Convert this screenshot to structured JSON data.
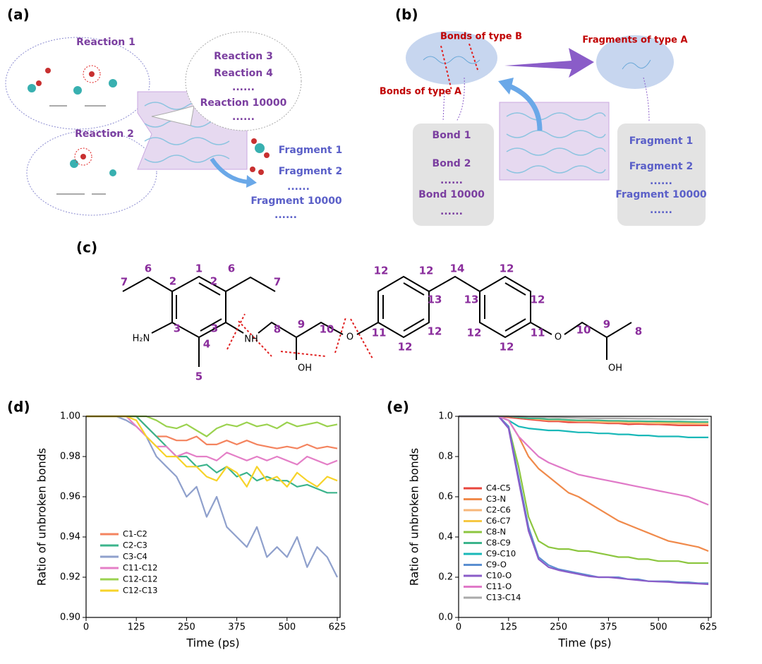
{
  "panel_a": {
    "label": "(a)",
    "reactions": [
      "Reaction 1",
      "Reaction 2"
    ],
    "reaction_list": [
      "Reaction 3",
      "Reaction 4",
      "......",
      "Reaction 10000",
      "......"
    ],
    "fragment_list": [
      "Fragment 1",
      "Fragment 2",
      "......",
      "Fragment 10000",
      "......"
    ]
  },
  "panel_b": {
    "label": "(b)",
    "bonds_b": "Bonds of type B",
    "bonds_a": "Bonds of type A",
    "fragments_a": "Fragments of type A",
    "bond_list": [
      "Bond 1",
      "Bond 2",
      "......",
      "Bond 10000",
      "......"
    ],
    "fragment_list": [
      "Fragment 1",
      "Fragment 2",
      "......",
      "Fragment 10000",
      "......"
    ]
  },
  "panel_c": {
    "label": "(c)",
    "numbers": [
      "7",
      "6",
      "2",
      "1",
      "2",
      "6",
      "7",
      "3",
      "3",
      "4",
      "5",
      "8",
      "9",
      "10",
      "11",
      "12",
      "12",
      "13",
      "12",
      "12",
      "14",
      "13",
      "12",
      "12",
      "12",
      "12",
      "11",
      "10",
      "9",
      "8"
    ],
    "groups": [
      "H₂N",
      "NH",
      "OH",
      "O",
      "O",
      "OH"
    ]
  },
  "chart_data": [
    {
      "type": "line",
      "panel_label": "(d)",
      "xlabel": "Time (ps)",
      "ylabel": "Ratio of unbroken bonds",
      "xlim": [
        0,
        632
      ],
      "xticks": [
        0,
        125,
        250,
        375,
        500,
        625
      ],
      "ylim": [
        0.9,
        1.0
      ],
      "yticks": [
        {
          "value": 0.9,
          "label": "0.90"
        },
        0.92,
        0.94,
        0.96,
        0.98,
        {
          "value": 1.0,
          "label": "1.00"
        }
      ],
      "legend": "lower left",
      "x": [
        0,
        25,
        50,
        75,
        100,
        125,
        150,
        175,
        200,
        225,
        250,
        275,
        300,
        325,
        350,
        375,
        400,
        425,
        450,
        475,
        500,
        525,
        550,
        575,
        600,
        625
      ],
      "series": [
        {
          "name": "C1-C2",
          "color": "#f4845f",
          "values": [
            1,
            1,
            1,
            1,
            1,
            1,
            0.995,
            0.99,
            0.99,
            0.988,
            0.988,
            0.99,
            0.986,
            0.986,
            0.988,
            0.986,
            0.988,
            0.986,
            0.985,
            0.984,
            0.985,
            0.984,
            0.986,
            0.984,
            0.985,
            0.984
          ]
        },
        {
          "name": "C2-C3",
          "color": "#3cb48c",
          "values": [
            1,
            1,
            1,
            1,
            1,
            1,
            0.995,
            0.99,
            0.985,
            0.98,
            0.98,
            0.975,
            0.976,
            0.972,
            0.975,
            0.97,
            0.972,
            0.968,
            0.97,
            0.968,
            0.968,
            0.965,
            0.966,
            0.964,
            0.962,
            0.962
          ]
        },
        {
          "name": "C3-C4",
          "color": "#8fa0cc",
          "values": [
            1,
            1,
            1,
            1,
            0.998,
            0.995,
            0.99,
            0.98,
            0.975,
            0.97,
            0.96,
            0.965,
            0.95,
            0.96,
            0.945,
            0.94,
            0.935,
            0.945,
            0.93,
            0.935,
            0.93,
            0.94,
            0.925,
            0.935,
            0.93,
            0.92
          ]
        },
        {
          "name": "C11-C12",
          "color": "#e47fc7",
          "values": [
            1,
            1,
            1,
            1,
            1,
            0.995,
            0.99,
            0.985,
            0.985,
            0.98,
            0.982,
            0.98,
            0.98,
            0.978,
            0.982,
            0.98,
            0.978,
            0.98,
            0.978,
            0.98,
            0.978,
            0.976,
            0.98,
            0.978,
            0.976,
            0.978
          ]
        },
        {
          "name": "C12-C12",
          "color": "#9bd24f",
          "values": [
            1,
            1,
            1,
            1,
            1,
            1,
            1,
            0.998,
            0.995,
            0.994,
            0.996,
            0.993,
            0.99,
            0.994,
            0.996,
            0.995,
            0.997,
            0.995,
            0.996,
            0.994,
            0.997,
            0.995,
            0.996,
            0.997,
            0.995,
            0.996
          ]
        },
        {
          "name": "C12-C13",
          "color": "#f7d32a",
          "values": [
            1,
            1,
            1,
            1,
            1,
            0.998,
            0.99,
            0.985,
            0.98,
            0.98,
            0.975,
            0.975,
            0.97,
            0.968,
            0.975,
            0.972,
            0.965,
            0.975,
            0.968,
            0.97,
            0.965,
            0.972,
            0.968,
            0.965,
            0.97,
            0.968
          ]
        }
      ]
    },
    {
      "type": "line",
      "panel_label": "(e)",
      "xlabel": "Time (ps)",
      "ylabel": "Ratio of unbroken bonds",
      "xlim": [
        0,
        632
      ],
      "xticks": [
        0,
        125,
        250,
        375,
        500,
        625
      ],
      "ylim": [
        0.0,
        1.0
      ],
      "yticks": [
        {
          "value": 0.0,
          "label": "0.0"
        },
        0.2,
        0.4,
        0.6,
        0.8,
        {
          "value": 1.0,
          "label": "1.0"
        }
      ],
      "legend": "left",
      "x": [
        0,
        25,
        50,
        75,
        100,
        125,
        150,
        175,
        200,
        225,
        250,
        275,
        300,
        325,
        350,
        375,
        400,
        425,
        450,
        475,
        500,
        525,
        550,
        575,
        600,
        625
      ],
      "series": [
        {
          "name": "C4-C5",
          "color": "#e8453c",
          "values": [
            1,
            1,
            1,
            1,
            1,
            0.995,
            0.99,
            0.985,
            0.98,
            0.975,
            0.975,
            0.97,
            0.97,
            0.97,
            0.968,
            0.965,
            0.965,
            0.96,
            0.962,
            0.96,
            0.96,
            0.958,
            0.955,
            0.955,
            0.955,
            0.955
          ]
        },
        {
          "name": "C3-N",
          "color": "#f08a4b",
          "values": [
            1,
            1,
            1,
            1,
            1,
            0.98,
            0.9,
            0.8,
            0.74,
            0.7,
            0.66,
            0.62,
            0.6,
            0.57,
            0.54,
            0.51,
            0.48,
            0.46,
            0.44,
            0.42,
            0.4,
            0.38,
            0.37,
            0.36,
            0.35,
            0.33
          ]
        },
        {
          "name": "C2-C6",
          "color": "#f7b77a",
          "values": [
            1,
            1,
            1,
            1,
            1,
            1,
            0.995,
            0.99,
            0.985,
            0.98,
            0.98,
            0.978,
            0.975,
            0.975,
            0.972,
            0.97,
            0.97,
            0.968,
            0.968,
            0.966,
            0.965,
            0.965,
            0.964,
            0.963,
            0.962,
            0.962
          ]
        },
        {
          "name": "C6-C7",
          "color": "#f6c843",
          "values": [
            1,
            1,
            1,
            1,
            1,
            1,
            0.995,
            0.99,
            0.988,
            0.985,
            0.985,
            0.982,
            0.98,
            0.98,
            0.978,
            0.978,
            0.976,
            0.975,
            0.975,
            0.974,
            0.972,
            0.972,
            0.971,
            0.97,
            0.97,
            0.97
          ]
        },
        {
          "name": "C8-N",
          "color": "#8cc63f",
          "values": [
            1,
            1,
            1,
            1,
            1,
            0.95,
            0.75,
            0.5,
            0.38,
            0.35,
            0.34,
            0.34,
            0.33,
            0.33,
            0.32,
            0.31,
            0.3,
            0.3,
            0.29,
            0.29,
            0.28,
            0.28,
            0.28,
            0.27,
            0.27,
            0.27
          ]
        },
        {
          "name": "C8-C9",
          "color": "#3cb48c",
          "values": [
            1,
            1,
            1,
            1,
            1,
            1,
            0.995,
            0.99,
            0.99,
            0.985,
            0.985,
            0.982,
            0.98,
            0.98,
            0.98,
            0.978,
            0.978,
            0.976,
            0.976,
            0.975,
            0.975,
            0.974,
            0.974,
            0.973,
            0.972,
            0.972
          ]
        },
        {
          "name": "C9-C10",
          "color": "#19b8b8",
          "values": [
            1,
            1,
            1,
            1,
            1,
            0.98,
            0.95,
            0.94,
            0.935,
            0.93,
            0.93,
            0.925,
            0.92,
            0.92,
            0.915,
            0.915,
            0.91,
            0.91,
            0.905,
            0.905,
            0.9,
            0.9,
            0.9,
            0.895,
            0.895,
            0.895
          ]
        },
        {
          "name": "C9-O",
          "color": "#5b8fd1",
          "values": [
            1,
            1,
            1,
            1,
            1,
            0.95,
            0.7,
            0.45,
            0.3,
            0.26,
            0.24,
            0.23,
            0.22,
            0.21,
            0.2,
            0.2,
            0.2,
            0.19,
            0.19,
            0.18,
            0.18,
            0.18,
            0.175,
            0.175,
            0.17,
            0.17
          ]
        },
        {
          "name": "C10-O",
          "color": "#8a5cc8",
          "values": [
            1,
            1,
            1,
            1,
            1,
            0.94,
            0.68,
            0.43,
            0.29,
            0.25,
            0.235,
            0.225,
            0.215,
            0.205,
            0.2,
            0.2,
            0.195,
            0.19,
            0.185,
            0.18,
            0.178,
            0.176,
            0.172,
            0.17,
            0.168,
            0.165
          ]
        },
        {
          "name": "C11-O",
          "color": "#e07ac8",
          "values": [
            1,
            1,
            1,
            1,
            1,
            0.98,
            0.9,
            0.85,
            0.8,
            0.77,
            0.75,
            0.73,
            0.71,
            0.7,
            0.69,
            0.68,
            0.67,
            0.66,
            0.65,
            0.64,
            0.63,
            0.62,
            0.61,
            0.6,
            0.58,
            0.56
          ]
        },
        {
          "name": "C13-C14",
          "color": "#aaaaaa",
          "values": [
            1,
            1,
            1,
            1,
            1,
            1,
            1,
            0.998,
            0.996,
            0.995,
            0.994,
            0.993,
            0.992,
            0.991,
            0.99,
            0.99,
            0.99,
            0.989,
            0.988,
            0.988,
            0.987,
            0.987,
            0.986,
            0.986,
            0.985,
            0.985
          ]
        }
      ]
    }
  ]
}
